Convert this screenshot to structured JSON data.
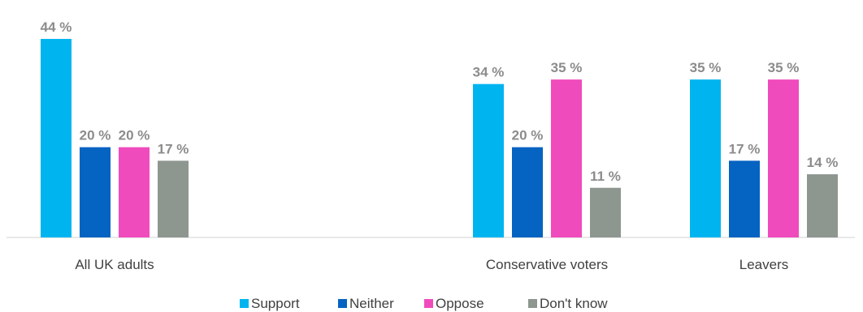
{
  "chart_data": {
    "type": "bar",
    "categories": [
      "All UK adults",
      "",
      "Conservative voters",
      "Leavers"
    ],
    "series": [
      {
        "name": "Support",
        "values": [
          44,
          null,
          34,
          35
        ],
        "labels": [
          "44 %",
          "",
          "34 %",
          "35 %"
        ],
        "color": "#00b5ef"
      },
      {
        "name": "Neither",
        "values": [
          20,
          null,
          20,
          17
        ],
        "labels": [
          "20 %",
          "",
          "20 %",
          "17 %"
        ],
        "color": "#0563c1"
      },
      {
        "name": "Oppose",
        "values": [
          20,
          null,
          35,
          35
        ],
        "labels": [
          "20 %",
          "",
          "35 %",
          "35 %"
        ],
        "color": "#f04bbd"
      },
      {
        "name": "Don't know",
        "values": [
          17,
          null,
          11,
          14
        ],
        "labels": [
          "17 %",
          "",
          "11 %",
          "14 %"
        ],
        "color": "#8e9690"
      }
    ],
    "title": "",
    "xlabel": "",
    "ylabel": "",
    "ylim": [
      0,
      44
    ],
    "grid": false,
    "legend": "bottom"
  }
}
